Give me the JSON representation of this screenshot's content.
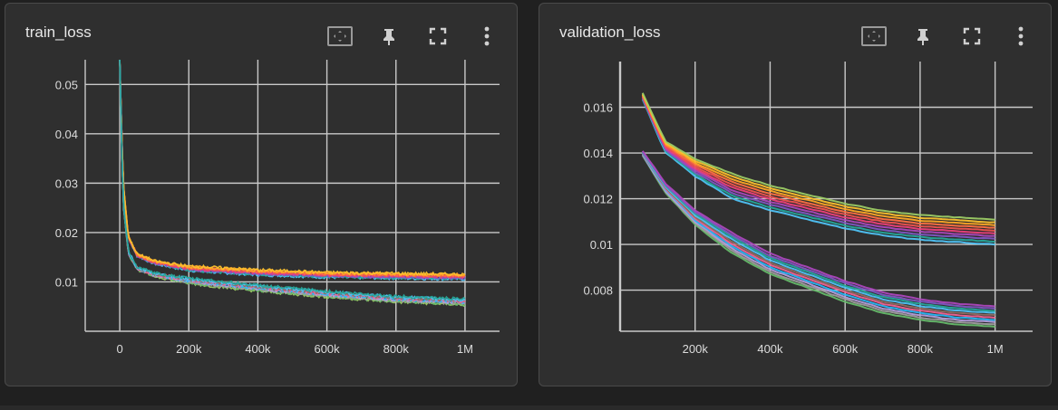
{
  "cards": [
    {
      "title": "train_loss"
    },
    {
      "title": "validation_loss"
    }
  ],
  "toolbar_icons": [
    "fit-domain-icon",
    "pin-icon",
    "fullscreen-icon",
    "more-vert-icon"
  ],
  "colors": {
    "background": "#202020",
    "card": "#2f2f2f",
    "grid": "#c9c9c9",
    "text": "#dcdcdc",
    "series": [
      "#4fc3f7",
      "#26a69a",
      "#7e57c2",
      "#ab47bc",
      "#ec407a",
      "#ef5350",
      "#ff7043",
      "#ffa726",
      "#fbc02d",
      "#9ccc65",
      "#66bb6a",
      "#9e9e9e",
      "#b39ddb",
      "#29b6f6",
      "#f06292",
      "#8d6e63"
    ]
  },
  "chart_data": [
    {
      "type": "line",
      "title": "train_loss",
      "xlabel": "",
      "ylabel": "",
      "xlim": [
        -100000,
        1100000
      ],
      "ylim": [
        0,
        0.055
      ],
      "xticks": [
        0,
        200000,
        400000,
        600000,
        800000,
        1000000
      ],
      "xtick_labels": [
        "0",
        "200k",
        "400k",
        "600k",
        "800k",
        "1M"
      ],
      "yticks": [
        0.01,
        0.02,
        0.03,
        0.04,
        0.05
      ],
      "ytick_labels": [
        "0.01",
        "0.02",
        "0.03",
        "0.04",
        "0.05"
      ],
      "grid": true,
      "series_groups": [
        {
          "count": 9,
          "x": [
            0,
            10000,
            25000,
            50000,
            100000,
            200000,
            400000,
            600000,
            800000,
            1000000
          ],
          "y": [
            0.055,
            0.03,
            0.019,
            0.0155,
            0.014,
            0.0128,
            0.012,
            0.0115,
            0.0113,
            0.0111
          ]
        },
        {
          "count": 9,
          "x": [
            0,
            10000,
            25000,
            50000,
            100000,
            200000,
            400000,
            600000,
            800000,
            1000000
          ],
          "y": [
            0.055,
            0.026,
            0.016,
            0.0128,
            0.0115,
            0.0103,
            0.0088,
            0.0076,
            0.0066,
            0.006
          ]
        }
      ]
    },
    {
      "type": "line",
      "title": "validation_loss",
      "xlabel": "",
      "ylabel": "",
      "xlim": [
        0,
        1100000
      ],
      "ylim": [
        0.0062,
        0.018
      ],
      "xticks": [
        200000,
        400000,
        600000,
        800000,
        1000000
      ],
      "xtick_labels": [
        "200k",
        "400k",
        "600k",
        "800k",
        "1M"
      ],
      "yticks": [
        0.008,
        0.01,
        0.012,
        0.014,
        0.016
      ],
      "ytick_labels": [
        "0.008",
        "0.01",
        "0.012",
        "0.014",
        "0.016"
      ],
      "grid": true,
      "series_groups": [
        {
          "count": 10,
          "x": [
            60000,
            120000,
            200000,
            300000,
            400000,
            500000,
            600000,
            700000,
            800000,
            900000,
            1000000
          ],
          "y": [
            0.0165,
            0.0143,
            0.0134,
            0.0126,
            0.0121,
            0.0117,
            0.0113,
            0.011,
            0.0108,
            0.0107,
            0.0106
          ]
        },
        {
          "count": 10,
          "x": [
            60000,
            120000,
            200000,
            300000,
            400000,
            500000,
            600000,
            700000,
            800000,
            900000,
            1000000
          ],
          "y": [
            0.014,
            0.0125,
            0.0112,
            0.0101,
            0.0092,
            0.0086,
            0.008,
            0.0075,
            0.0072,
            0.007,
            0.0069
          ]
        }
      ]
    }
  ]
}
